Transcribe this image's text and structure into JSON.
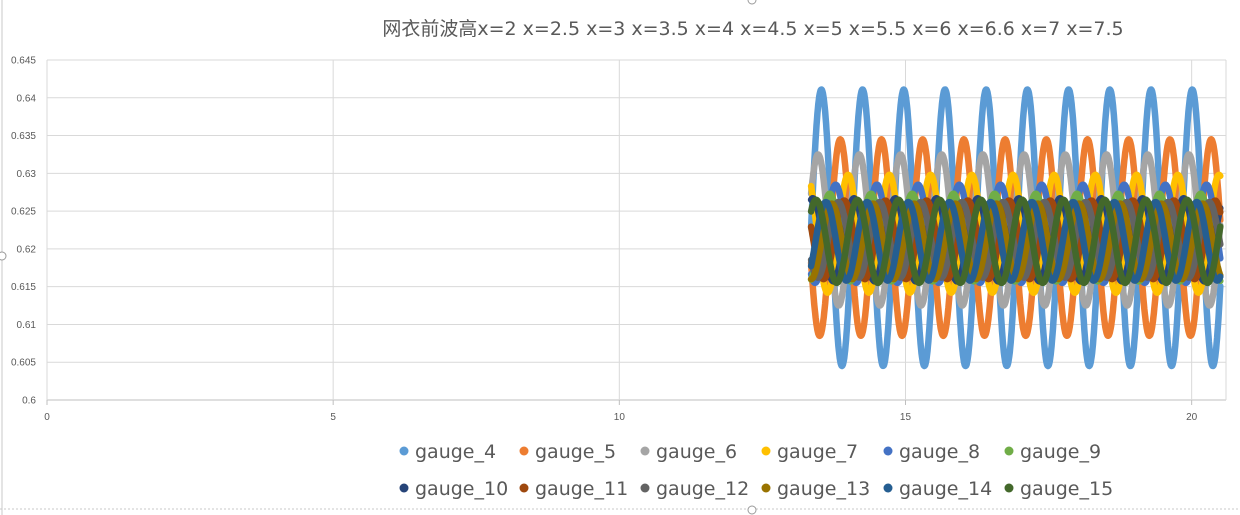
{
  "chart_data": {
    "type": "scatter",
    "title": "网衣前波高x=2 x=2.5 x=3 x=3.5 x=4 x=4.5 x=5 x=5.5 x=6  x=6.6 x=7 x=7.5",
    "xlim": [
      0,
      20.6
    ],
    "ylim": [
      0.6,
      0.645
    ],
    "x_ticks": [
      0,
      5,
      10,
      15,
      20
    ],
    "y_ticks": [
      0.6,
      0.605,
      0.61,
      0.615,
      0.62,
      0.625,
      0.63,
      0.635,
      0.64,
      0.645
    ],
    "x_tick_labels": [
      "0",
      "5",
      "10",
      "15",
      "20"
    ],
    "y_tick_labels": [
      "0.6",
      "0.605",
      "0.61",
      "0.615",
      "0.62",
      "0.625",
      "0.63",
      "0.635",
      "0.64",
      "0.645"
    ],
    "grid": true,
    "legend_position": "bottom",
    "x_range": [
      13.35,
      20.5
    ],
    "wave_period": 0.72,
    "series": [
      {
        "name": "gauge_4",
        "color": "#5B9BD5",
        "mean": 0.6228,
        "amplitude": 0.0183,
        "phase": 0.0
      },
      {
        "name": "gauge_5",
        "color": "#ED7D31",
        "mean": 0.6215,
        "amplitude": 0.013,
        "phase": 3.4
      },
      {
        "name": "gauge_6",
        "color": "#A5A5A5",
        "mean": 0.6225,
        "amplitude": 0.01,
        "phase": 0.5
      },
      {
        "name": "gauge_7",
        "color": "#FFC000",
        "mean": 0.622,
        "amplitude": 0.0078,
        "phase": 2.2
      },
      {
        "name": "gauge_8",
        "color": "#4472C4",
        "mean": 0.622,
        "amplitude": 0.0065,
        "phase": 4.1
      },
      {
        "name": "gauge_9",
        "color": "#70AD47",
        "mean": 0.6215,
        "amplitude": 0.0058,
        "phase": 5.0
      },
      {
        "name": "gauge_10",
        "color": "#264478",
        "mean": 0.6212,
        "amplitude": 0.0055,
        "phase": 1.3
      },
      {
        "name": "gauge_11",
        "color": "#9E480E",
        "mean": 0.6212,
        "amplitude": 0.0052,
        "phase": 2.8
      },
      {
        "name": "gauge_12",
        "color": "#636363",
        "mean": 0.6212,
        "amplitude": 0.005,
        "phase": 3.7
      },
      {
        "name": "gauge_13",
        "color": "#997300",
        "mean": 0.621,
        "amplitude": 0.005,
        "phase": 4.7
      },
      {
        "name": "gauge_14",
        "color": "#255E91",
        "mean": 0.621,
        "amplitude": 0.0052,
        "phase": 5.6
      },
      {
        "name": "gauge_15",
        "color": "#43682B",
        "mean": 0.621,
        "amplitude": 0.0055,
        "phase": 0.8
      }
    ]
  }
}
